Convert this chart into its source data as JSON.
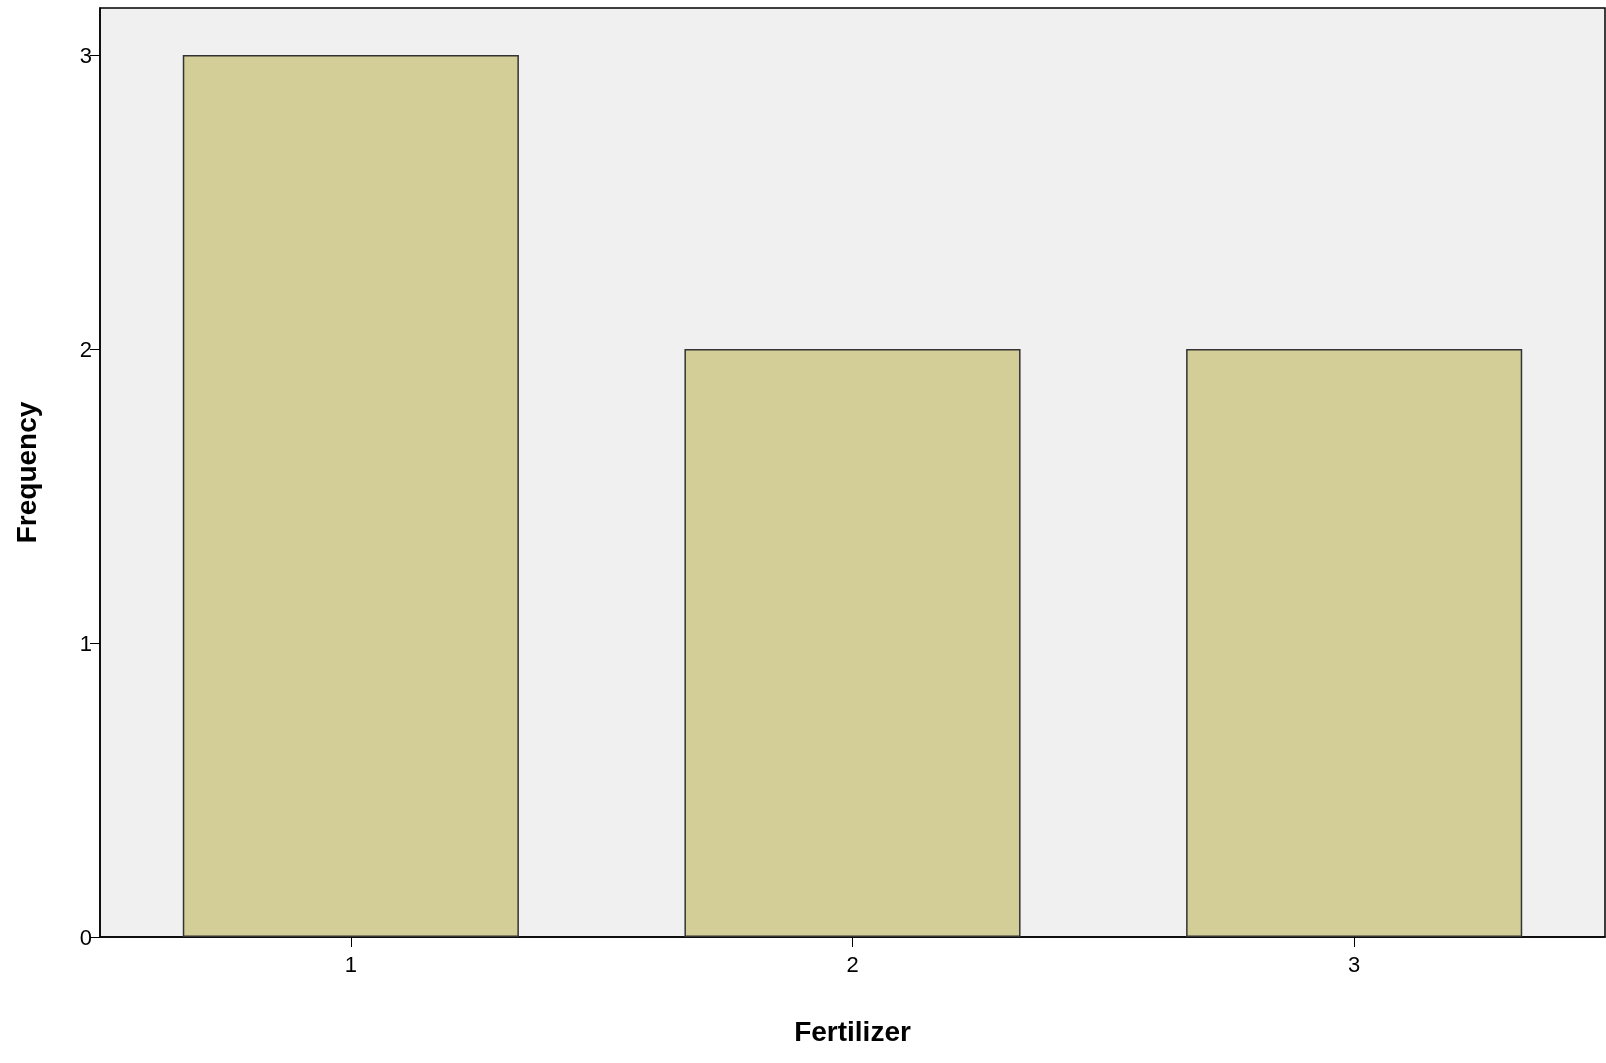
{
  "chart_data": {
    "type": "bar",
    "xlabel": "Fertilizer",
    "ylabel": "Frequency",
    "categories": [
      "1",
      "2",
      "3"
    ],
    "values": [
      3,
      2,
      2
    ],
    "color": "#d3cd97",
    "ylim": [
      0,
      3.16
    ],
    "yticks": [
      0,
      1,
      2,
      3
    ],
    "grid": false
  }
}
